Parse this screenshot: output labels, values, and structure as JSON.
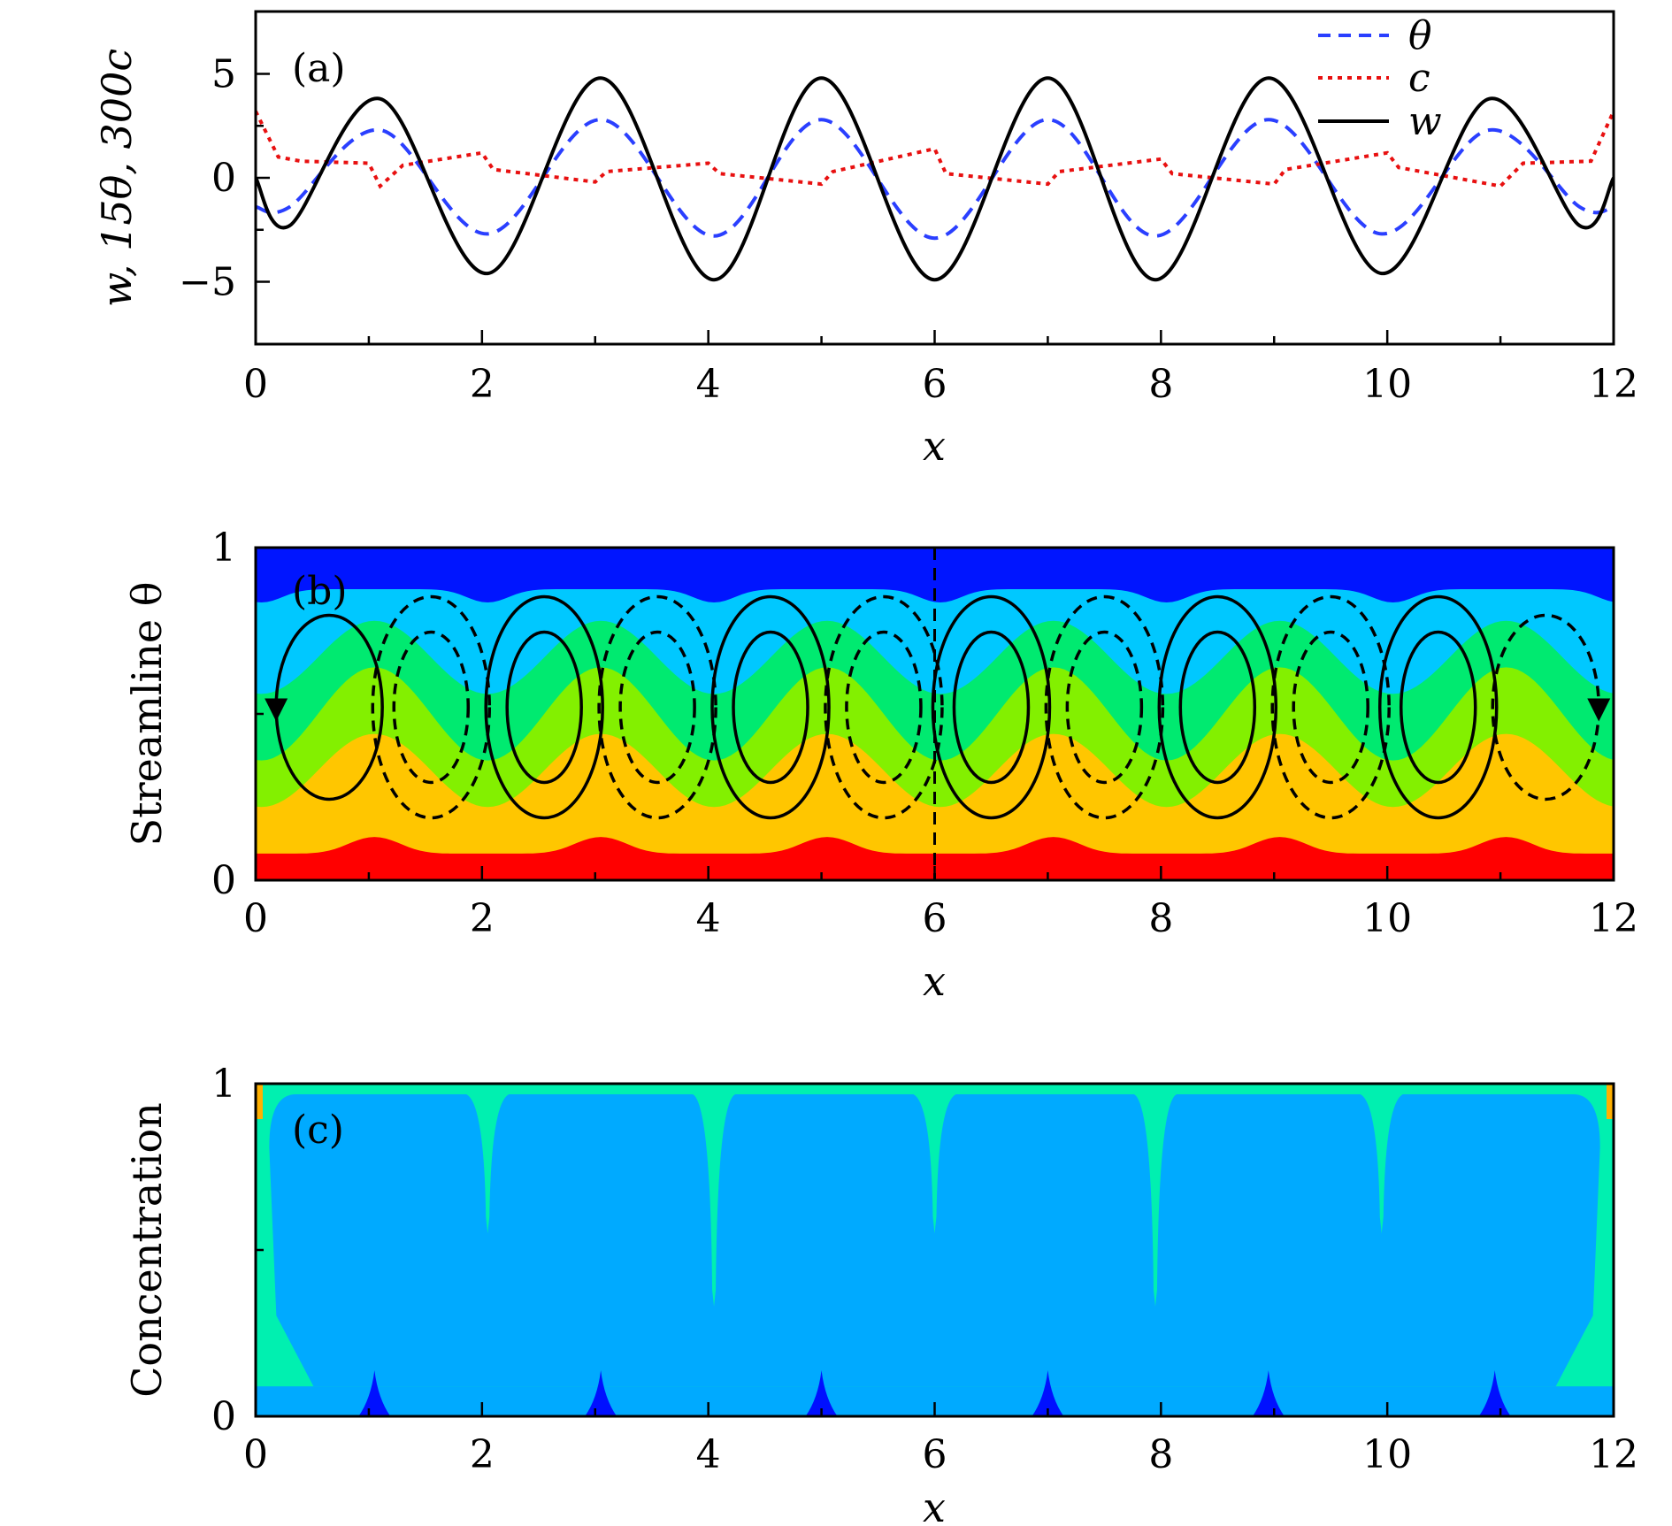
{
  "chart_data": [
    {
      "panel": "(a)",
      "type": "line",
      "xlabel": "x",
      "ylabel": "w, 15θ, 300c",
      "xlim": [
        0,
        12
      ],
      "ylim": [
        -8,
        8
      ],
      "xticks": [
        0,
        2,
        4,
        6,
        8,
        10,
        12
      ],
      "xtick_labels": [
        "0",
        "2",
        "4",
        "6",
        "8",
        "10",
        "12"
      ],
      "yticks": [
        -5,
        0,
        5
      ],
      "ytick_labels": [
        "−5",
        "0",
        "5"
      ],
      "legend_position": "top-right",
      "series": [
        {
          "name": "θ",
          "style": "dashed",
          "color": "#2a3fff",
          "x": [
            0,
            0.3,
            1.1,
            2.05,
            3.05,
            4.05,
            5.0,
            6.0,
            7.0,
            7.95,
            8.95,
            9.95,
            10.9,
            11.7,
            12
          ],
          "y": [
            -1.4,
            -1.4,
            2.3,
            -2.7,
            2.8,
            -2.8,
            2.8,
            -2.9,
            2.8,
            -2.8,
            2.8,
            -2.7,
            2.3,
            -1.4,
            -1.4
          ]
        },
        {
          "name": "c",
          "style": "dotted",
          "color": "#e81010",
          "x": [
            0,
            0.2,
            0.4,
            1.0,
            1.1,
            1.3,
            2.0,
            2.1,
            3.0,
            3.1,
            4.0,
            4.1,
            5.0,
            5.1,
            6.0,
            6.1,
            7.0,
            7.1,
            8.0,
            8.1,
            9.0,
            9.1,
            10.0,
            10.1,
            11.0,
            11.2,
            11.8,
            12
          ],
          "y": [
            3.2,
            1.0,
            0.8,
            0.7,
            -0.4,
            0.6,
            1.2,
            0.4,
            -0.2,
            0.3,
            0.7,
            0.2,
            -0.3,
            0.3,
            1.4,
            0.2,
            -0.3,
            0.3,
            0.9,
            0.2,
            -0.3,
            0.4,
            1.2,
            0.5,
            -0.4,
            0.7,
            0.8,
            3.2
          ]
        },
        {
          "name": "w",
          "style": "solid",
          "color": "#000000",
          "x": [
            0,
            0.3,
            1.1,
            2.05,
            3.05,
            4.05,
            5.0,
            6.0,
            7.0,
            7.95,
            8.95,
            9.95,
            10.9,
            11.7,
            12
          ],
          "y": [
            0,
            -2.3,
            3.8,
            -4.6,
            4.8,
            -4.9,
            4.8,
            -4.9,
            4.8,
            -4.9,
            4.8,
            -4.6,
            3.8,
            -2.3,
            0
          ]
        }
      ]
    },
    {
      "panel": "(b)",
      "type": "heatmap",
      "xlabel": "x",
      "ylabel": "Streamline θ",
      "xlim": [
        0,
        12
      ],
      "ylim": [
        0,
        1
      ],
      "xticks": [
        0,
        2,
        4,
        6,
        8,
        10,
        12
      ],
      "xtick_labels": [
        "0",
        "2",
        "4",
        "6",
        "8",
        "10",
        "12"
      ],
      "yticks": [
        0,
        1
      ],
      "ytick_labels": [
        "0",
        "1"
      ],
      "levels": [
        {
          "color": "#ff0000",
          "min": 0.0
        },
        {
          "color": "#ffc600",
          "min": 0.17
        },
        {
          "color": "#83f000",
          "min": 0.33
        },
        {
          "color": "#00ea70",
          "min": 0.5
        },
        {
          "color": "#00c8ff",
          "min": 0.67
        },
        {
          "color": "#0015ff",
          "min": 0.83
        }
      ],
      "cell_centers": [
        0.65,
        1.55,
        2.55,
        3.55,
        4.55,
        5.55,
        6.5,
        7.5,
        8.5,
        9.5,
        10.45,
        11.4
      ],
      "divider_x": 6
    },
    {
      "panel": "(c)",
      "type": "heatmap",
      "xlabel": "x",
      "ylabel": "Concentration",
      "xlim": [
        0,
        12
      ],
      "ylim": [
        0,
        1
      ],
      "xticks": [
        0,
        2,
        4,
        6,
        8,
        10,
        12
      ],
      "xtick_labels": [
        "0",
        "2",
        "4",
        "6",
        "8",
        "10",
        "12"
      ],
      "yticks": [
        0,
        1
      ],
      "ytick_labels": [
        "0",
        "1"
      ],
      "colors": {
        "background": "#00aaff",
        "boundary": "#00f0b0",
        "wall": "#ffb000",
        "spike": "#0010ff"
      },
      "down_spikes_x": [
        2.05,
        4.05,
        6.0,
        7.95,
        9.95
      ],
      "up_spikes_x": [
        1.05,
        3.05,
        5.0,
        7.0,
        8.95,
        10.95
      ]
    }
  ]
}
